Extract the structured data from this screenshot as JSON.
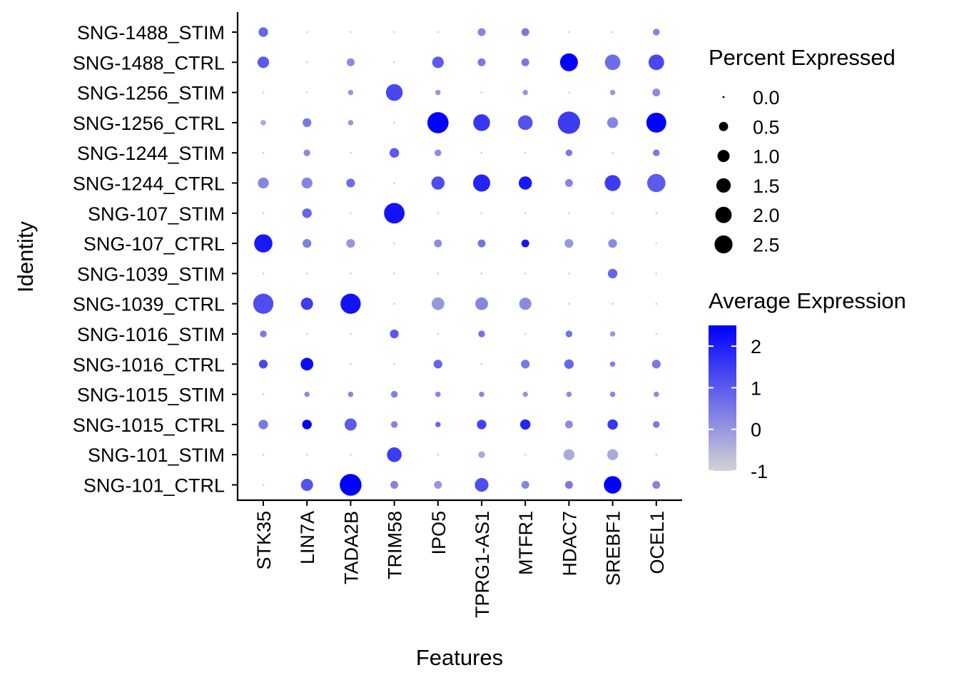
{
  "chart_data": {
    "type": "dotplot",
    "title": "",
    "xlabel": "Features",
    "ylabel": "Identity",
    "features": [
      "STK35",
      "LIN7A",
      "TADA2B",
      "TRIM58",
      "IPO5",
      "TPRG1-AS1",
      "MTFR1",
      "HDAC7",
      "SREBF1",
      "OCEL1"
    ],
    "identities": [
      "SNG-1488_STIM",
      "SNG-1488_CTRL",
      "SNG-1256_STIM",
      "SNG-1256_CTRL",
      "SNG-1244_STIM",
      "SNG-1244_CTRL",
      "SNG-107_STIM",
      "SNG-107_CTRL",
      "SNG-1039_STIM",
      "SNG-1039_CTRL",
      "SNG-1016_STIM",
      "SNG-1016_CTRL",
      "SNG-1015_STIM",
      "SNG-1015_CTRL",
      "SNG-101_STIM",
      "SNG-101_CTRL"
    ],
    "percent_expressed": [
      [
        0.5,
        0.0,
        0.0,
        0.0,
        0.0,
        0.3,
        0.3,
        0.0,
        0.0,
        0.2
      ],
      [
        0.8,
        0.0,
        0.3,
        0.0,
        0.8,
        0.3,
        0.3,
        2.2,
        1.6,
        1.6
      ],
      [
        0.0,
        0.0,
        0.1,
        1.9,
        0.1,
        0.0,
        0.1,
        0.0,
        0.1,
        0.3
      ],
      [
        0.1,
        0.4,
        0.1,
        0.0,
        3.2,
        1.9,
        1.4,
        3.6,
        0.7,
        2.8
      ],
      [
        0.0,
        0.2,
        0.0,
        0.5,
        0.2,
        0.0,
        0.0,
        0.2,
        0.0,
        0.2
      ],
      [
        0.7,
        0.7,
        0.4,
        0.0,
        1.1,
        2.0,
        1.1,
        0.3,
        1.7,
        2.3
      ],
      [
        0.0,
        0.5,
        0.0,
        3.0,
        0.0,
        0.0,
        0.0,
        0.0,
        0.0,
        0.0
      ],
      [
        2.3,
        0.4,
        0.4,
        0.0,
        0.3,
        0.3,
        0.3,
        0.4,
        0.4,
        0.0
      ],
      [
        0.0,
        0.0,
        0.0,
        0.0,
        0.0,
        0.0,
        0.0,
        0.0,
        0.5,
        0.0
      ],
      [
        2.9,
        0.9,
        2.9,
        0.0,
        1.0,
        1.0,
        0.9,
        0.0,
        0.0,
        0.0
      ],
      [
        0.2,
        0.0,
        0.0,
        0.4,
        0.0,
        0.2,
        0.0,
        0.2,
        0.1,
        0.0
      ],
      [
        0.4,
        1.0,
        0.0,
        0.0,
        0.4,
        0.0,
        0.4,
        0.5,
        0.1,
        0.4
      ],
      [
        0.0,
        0.1,
        0.1,
        0.2,
        0.1,
        0.1,
        0.1,
        0.1,
        0.1,
        0.1
      ],
      [
        0.5,
        0.5,
        0.9,
        0.2,
        0.1,
        0.5,
        0.6,
        0.3,
        0.6,
        0.2
      ],
      [
        0.0,
        0.0,
        0.0,
        1.4,
        0.0,
        0.2,
        0.0,
        0.7,
        0.7,
        0.0
      ],
      [
        0.0,
        0.9,
        3.4,
        0.3,
        0.3,
        1.2,
        0.3,
        0.3,
        2.1,
        0.3
      ]
    ],
    "average_expression": [
      [
        0.8,
        -1.0,
        -1.0,
        -1.0,
        -1.0,
        0.3,
        0.5,
        -1.0,
        -1.0,
        0.3
      ],
      [
        1.0,
        -1.0,
        0.2,
        -1.0,
        1.0,
        0.5,
        0.5,
        2.5,
        0.7,
        1.3
      ],
      [
        -1.0,
        -1.0,
        0.0,
        1.3,
        0.0,
        -1.0,
        0.0,
        -1.0,
        0.0,
        0.2
      ],
      [
        -0.3,
        0.5,
        0.0,
        -1.0,
        2.5,
        1.6,
        1.1,
        1.5,
        0.3,
        2.5
      ],
      [
        -1.0,
        0.2,
        -1.0,
        1.0,
        0.2,
        -1.0,
        -1.0,
        0.5,
        -1.0,
        0.5
      ],
      [
        0.3,
        0.3,
        0.7,
        -1.0,
        1.2,
        1.9,
        2.1,
        0.3,
        1.5,
        1.0
      ],
      [
        -1.0,
        0.8,
        -1.0,
        2.2,
        -1.0,
        -1.0,
        -1.0,
        -1.0,
        -1.0,
        -1.0
      ],
      [
        2.1,
        0.4,
        0.0,
        -1.0,
        0.2,
        0.6,
        2.1,
        0.0,
        0.2,
        -1.0
      ],
      [
        -1.0,
        -1.0,
        -1.0,
        -1.0,
        -1.0,
        -1.0,
        -1.0,
        -1.0,
        0.8,
        -1.0
      ],
      [
        1.2,
        1.5,
        2.2,
        -1.0,
        0.0,
        0.3,
        0.2,
        -1.0,
        -1.0,
        -1.0
      ],
      [
        0.5,
        -1.0,
        -1.0,
        1.0,
        -1.0,
        0.6,
        -1.0,
        0.6,
        0.0,
        -1.0
      ],
      [
        1.3,
        2.3,
        -1.0,
        -1.0,
        0.8,
        -1.0,
        0.5,
        0.8,
        0.4,
        0.5
      ],
      [
        -1.0,
        0.2,
        0.3,
        0.4,
        0.3,
        0.3,
        0.0,
        0.2,
        0.3,
        0.2
      ],
      [
        0.5,
        2.5,
        1.0,
        0.3,
        0.8,
        1.4,
        1.9,
        0.2,
        1.6,
        0.5
      ],
      [
        -1.0,
        -1.0,
        -1.0,
        1.5,
        -1.0,
        -0.3,
        -1.0,
        -0.3,
        -0.3,
        -1.0
      ],
      [
        -1.0,
        1.1,
        2.6,
        0.3,
        0.0,
        1.2,
        0.3,
        0.5,
        2.6,
        0.3
      ]
    ],
    "size_legend": {
      "title": "Percent Expressed",
      "entries": [
        {
          "label": "0.0",
          "value": 0.0
        },
        {
          "label": "0.5",
          "value": 0.5
        },
        {
          "label": "1.0",
          "value": 1.0
        },
        {
          "label": "1.5",
          "value": 1.5
        },
        {
          "label": "2.0",
          "value": 2.0
        },
        {
          "label": "2.5",
          "value": 2.5
        }
      ]
    },
    "color_legend": {
      "title": "Average Expression",
      "range": [
        -1,
        2.5
      ],
      "ticks": [
        {
          "label": "2",
          "value": 2
        },
        {
          "label": "1",
          "value": 1
        },
        {
          "label": "0",
          "value": 0
        },
        {
          "label": "-1",
          "value": -1
        }
      ],
      "low_color": "#d3d3d3",
      "high_color": "#0000ff"
    },
    "legend_position": "right",
    "grid": false
  }
}
